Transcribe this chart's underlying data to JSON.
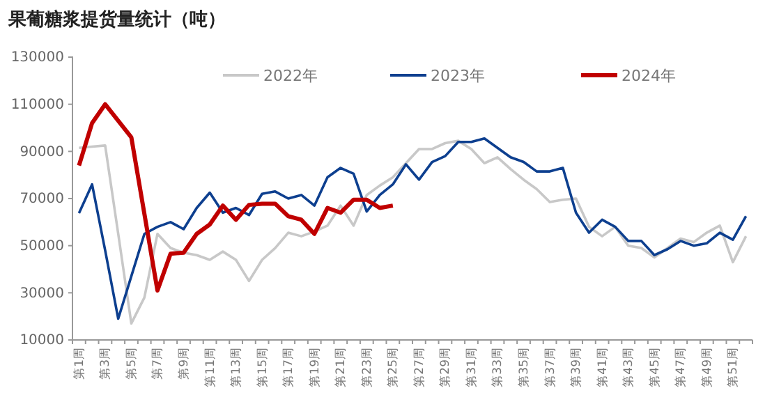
{
  "chart_data": {
    "type": "line",
    "title": "果葡糖浆提货量统计（吨）",
    "categories": [
      "第1周",
      null,
      "第3周",
      null,
      "第5周",
      null,
      "第7周",
      null,
      "第9周",
      null,
      "第11周",
      null,
      "第13周",
      null,
      "第15周",
      null,
      "第17周",
      null,
      "第19周",
      null,
      "第21周",
      null,
      "第23周",
      null,
      "第25周",
      null,
      "第27周",
      null,
      "第29周",
      null,
      "第31周",
      null,
      "第33周",
      null,
      "第35周",
      null,
      "第37周",
      null,
      "第39周",
      null,
      "第41周",
      null,
      "第43周",
      null,
      "第45周",
      null,
      "第47周",
      null,
      "第49周",
      null,
      "第51周",
      null
    ],
    "ylim": [
      10000,
      130000
    ],
    "yticks": [
      10000,
      30000,
      50000,
      70000,
      90000,
      110000,
      130000
    ],
    "grid": false,
    "legend": "top",
    "marker": "none",
    "series": [
      {
        "name": "2022年",
        "color": "#c8c8c8",
        "values": [
          91500,
          92000,
          92500,
          55000,
          17000,
          28000,
          55000,
          49000,
          47000,
          46000,
          44000,
          47500,
          44000,
          35000,
          44000,
          49000,
          55500,
          54000,
          56000,
          58500,
          67000,
          58500,
          71500,
          75500,
          79000,
          85000,
          91000,
          91000,
          93500,
          94500,
          91000,
          85000,
          87500,
          82500,
          78000,
          74000,
          68500,
          69500,
          70000,
          58000,
          54000,
          58000,
          50000,
          49000,
          45000,
          49000,
          53000,
          51500,
          55500,
          58500,
          43000,
          54000
        ]
      },
      {
        "name": "2023年",
        "color": "#0d3f8f",
        "values": [
          63800,
          76000,
          48000,
          19000,
          37000,
          55000,
          58000,
          60000,
          57000,
          66000,
          72500,
          64000,
          66000,
          63000,
          72000,
          73000,
          70000,
          71500,
          67000,
          79000,
          83000,
          80500,
          64500,
          71500,
          76000,
          84500,
          78000,
          85500,
          88000,
          94000,
          94000,
          95500,
          91500,
          87500,
          85500,
          81500,
          81500,
          83000,
          64000,
          55500,
          61000,
          58000,
          52000,
          52000,
          46000,
          48500,
          52000,
          50000,
          51000,
          55500,
          52500,
          62500
        ]
      },
      {
        "name": "2024年",
        "color": "#c00000",
        "values": [
          84000,
          102000,
          110000,
          103000,
          96000,
          63500,
          31000,
          46600,
          47000,
          55000,
          59000,
          67000,
          61000,
          67300,
          67800,
          67800,
          62500,
          61000,
          55000,
          66000,
          64000,
          69500,
          69500,
          66000,
          67000,
          null,
          null,
          null,
          null,
          null,
          null,
          null,
          null,
          null,
          null,
          null,
          null,
          null,
          null,
          null,
          null,
          null,
          null,
          null,
          null,
          null,
          null,
          null,
          null,
          null,
          null,
          null
        ]
      }
    ]
  }
}
